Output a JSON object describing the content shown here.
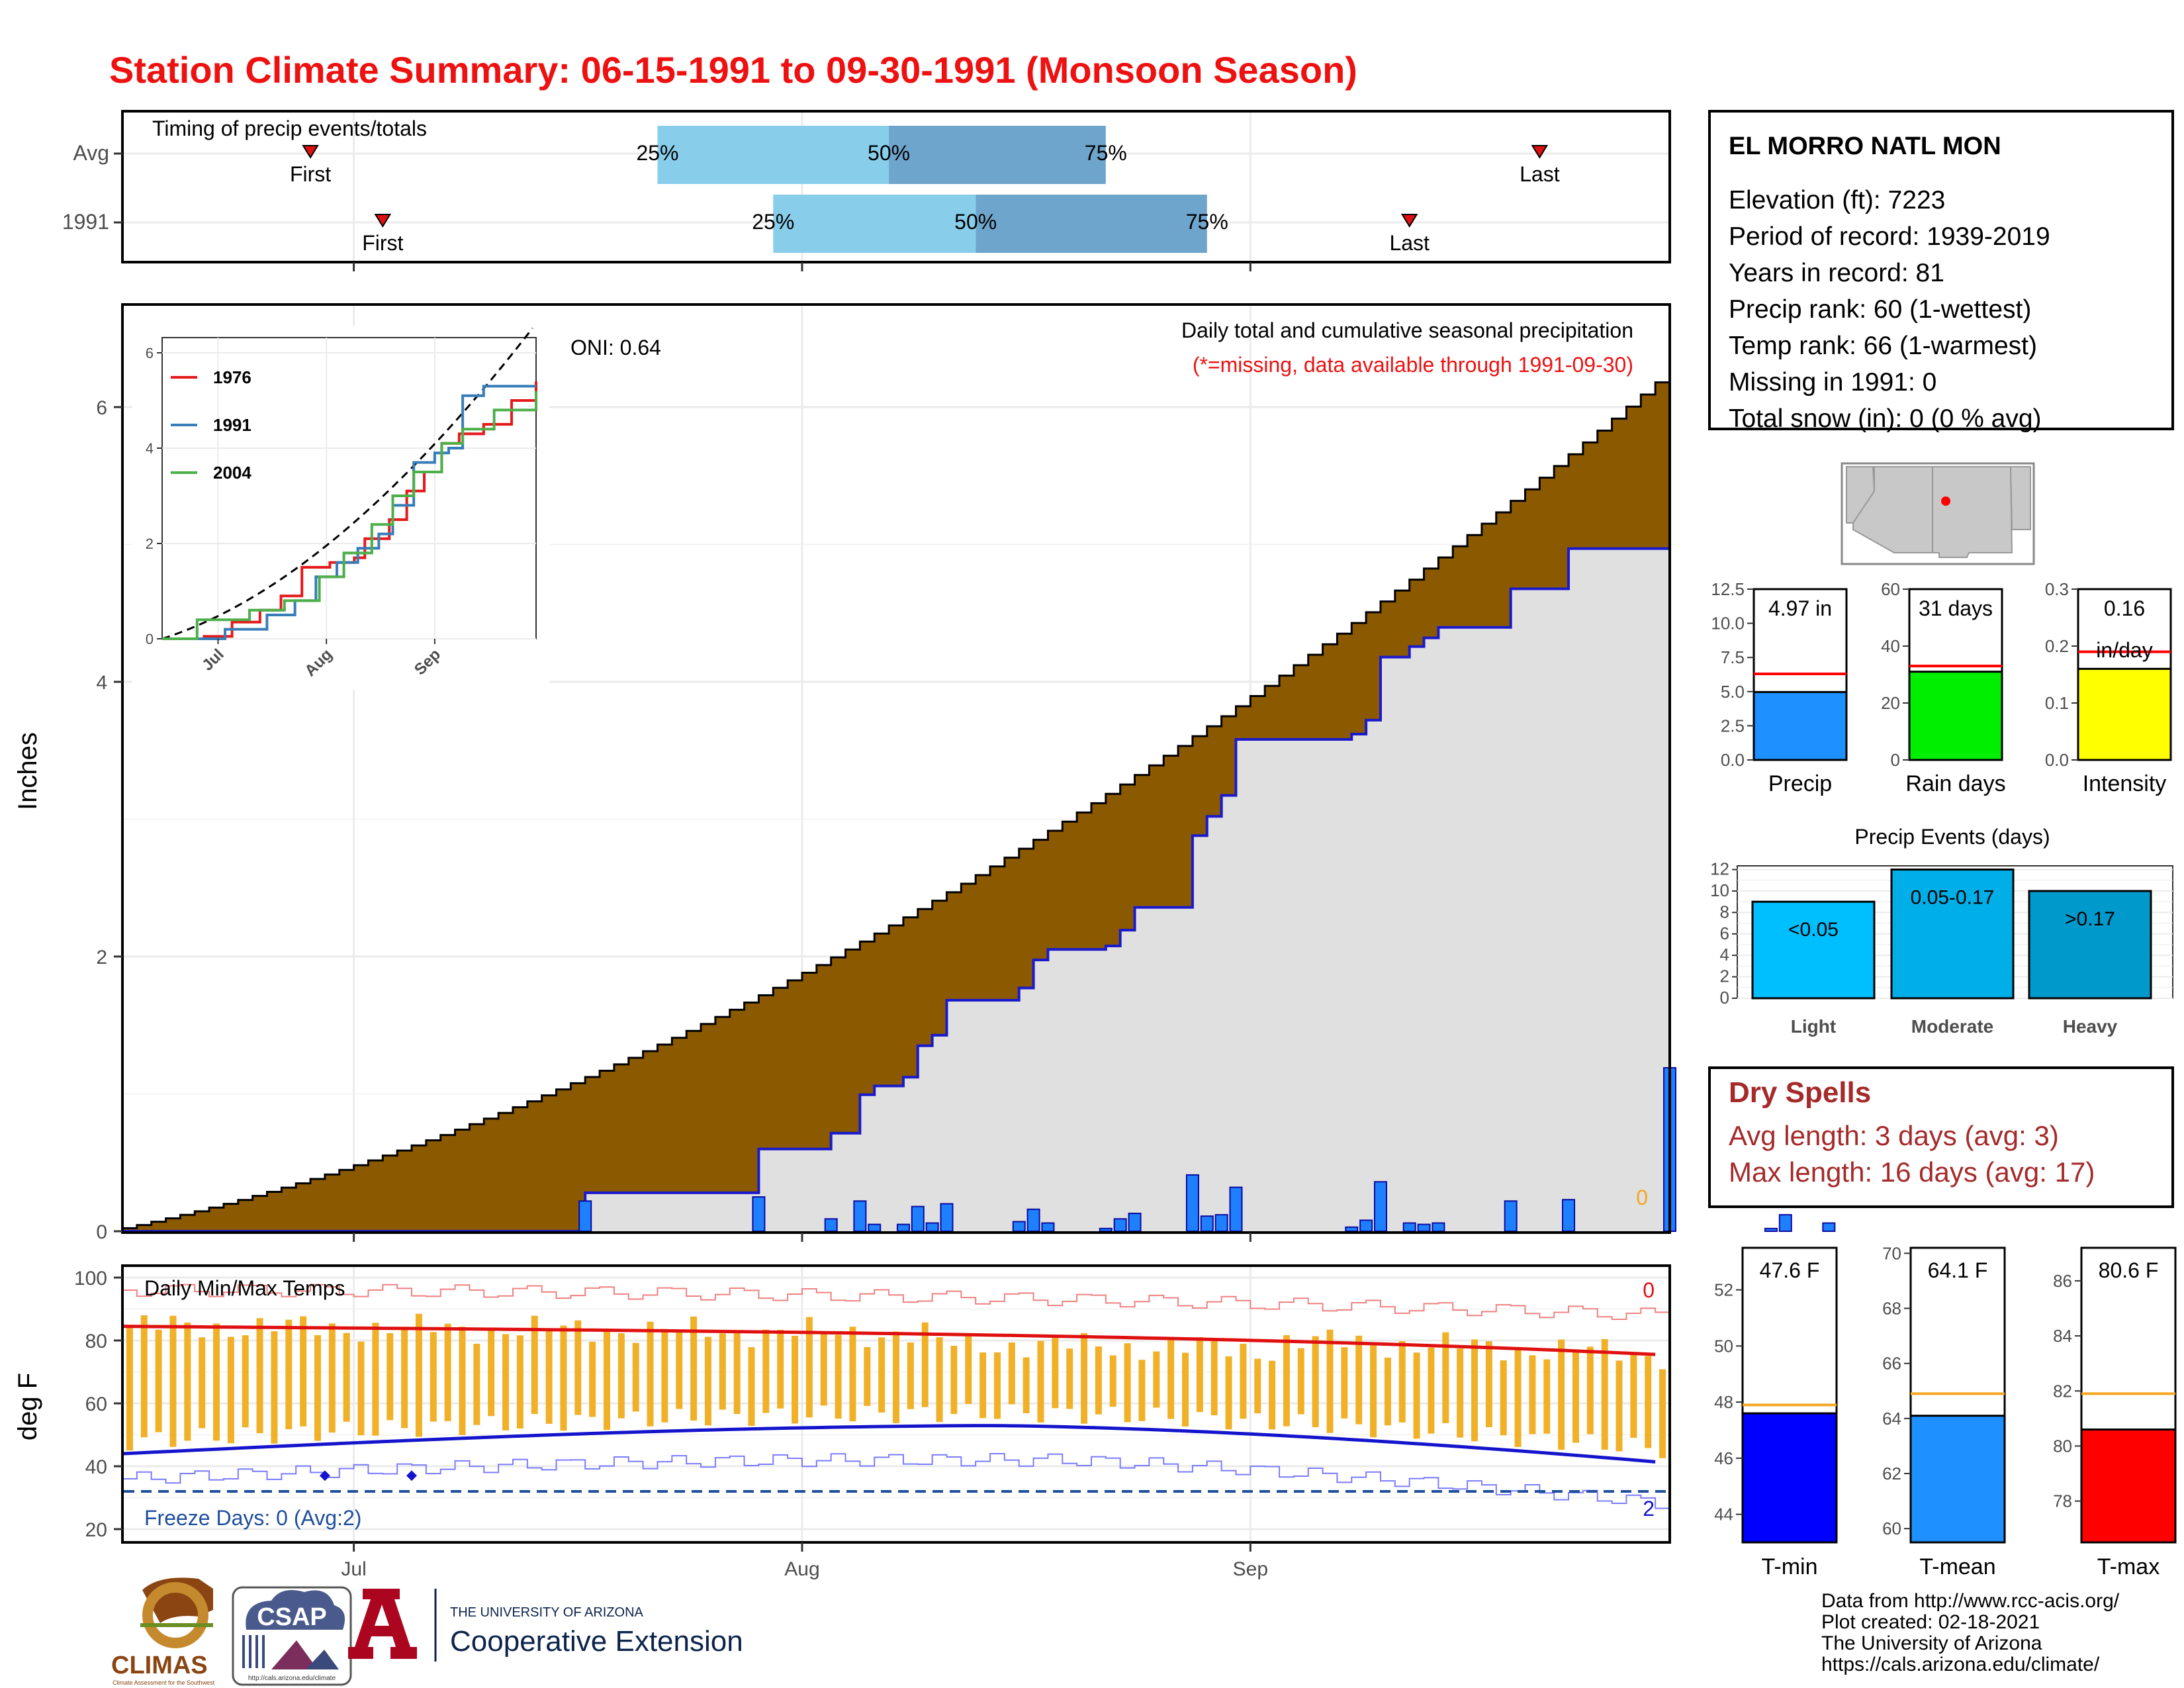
{
  "title": "Station Climate Summary: 06-15-1991 to 09-30-1991 (Monsoon Season)",
  "colors": {
    "title": "#ee1111",
    "cum_avg": "#8b5a00",
    "cum_obs": "#1a1acc",
    "bars": "#1e7fff",
    "area_bg": "#e0e0e0",
    "tmax_avg": "#e01010",
    "tmin_avg": "#1414cc",
    "temp_bar": "#f0b128",
    "q1": "#88ceeb",
    "q2": "#6ea5cc",
    "dry": "#a52a2a",
    "missing": "#ee1111"
  },
  "timing": {
    "title": "Timing of precip events/totals",
    "rows": [
      {
        "label": "Avg",
        "first_label": "First",
        "last_label": "Last",
        "first": "06-28",
        "last": "09-21",
        "q25": "07-22",
        "q50": "08-07",
        "q75": "08-22",
        "p25_label": "25%",
        "p50_label": "50%",
        "p75_label": "75%"
      },
      {
        "label": "1991",
        "first_label": "First",
        "last_label": "Last",
        "first": "07-03",
        "last": "09-12",
        "q25": "07-30",
        "q50": "08-13",
        "q75": "08-29",
        "p25_label": "25%",
        "p50_label": "50%",
        "p75_label": "75%"
      }
    ]
  },
  "main": {
    "ylabel": "Inches",
    "oni": "ONI: 0.64",
    "subtitle": "Daily total and cumulative seasonal precipitation",
    "missing_note": "(*=missing, data available through 1991-09-30)",
    "missing_count": "0",
    "x_ticks": [
      "Jul",
      "Aug",
      "Sep"
    ],
    "y_ticks": [
      "0",
      "2",
      "4",
      "6"
    ]
  },
  "inset": {
    "legend": [
      "1976",
      "1991",
      "2004"
    ],
    "legend_colors": [
      "#e41a1c",
      "#377eb8",
      "#4daf4a"
    ],
    "x_ticks": [
      "Jul",
      "Aug",
      "Sep"
    ],
    "y_ticks": [
      "0",
      "2",
      "4",
      "6"
    ]
  },
  "temp": {
    "ylabel": "deg F",
    "title": "Daily Min/Max Temps",
    "freeze_label": "Freeze Days: 0 (Avg:2)",
    "count_top": "0",
    "count_bottom": "2",
    "y_ticks": [
      "20",
      "40",
      "60",
      "80",
      "100"
    ],
    "x_ticks": [
      "Jul",
      "Aug",
      "Sep"
    ]
  },
  "station": {
    "name": "EL MORRO NATL MON",
    "lines": [
      "Elevation (ft): 7223",
      "Period of record: 1939-2019",
      "Years in record: 81",
      "Precip rank: 60 (1-wettest)",
      "Temp rank: 66 (1-warmest)",
      "Missing in 1991: 0",
      "Total snow (in): 0 (0 % avg)"
    ]
  },
  "mini_bars": [
    {
      "label": "Precip",
      "value_label": "4.97 in",
      "value": 4.97,
      "avg": 6.3,
      "max": 12.5,
      "ticks": [
        "0.0",
        "2.5",
        "5.0",
        "7.5",
        "10.0",
        "12.5"
      ],
      "color": "#1e90ff"
    },
    {
      "label": "Rain days",
      "value_label": "31 days",
      "value": 31,
      "avg": 33,
      "max": 60,
      "ticks": [
        "0",
        "20",
        "40",
        "60"
      ],
      "color": "#00ee00"
    },
    {
      "label": "Intensity",
      "value_label": "0.16",
      "value_label2": "in/day",
      "value": 0.16,
      "avg": 0.19,
      "max": 0.3,
      "ticks": [
        "0.0",
        "0.1",
        "0.2",
        "0.3"
      ],
      "color": "#ffff00"
    }
  ],
  "events": {
    "title": "Precip Events (days)",
    "categories": [
      "Light",
      "Moderate",
      "Heavy"
    ],
    "values": [
      9,
      12,
      10
    ],
    "value_labels": [
      "<0.05",
      "0.05-0.17",
      ">0.17"
    ],
    "colors": [
      "#00bfff",
      "#00afe8",
      "#0099cc"
    ],
    "y_ticks": [
      "0",
      "2",
      "4",
      "6",
      "8",
      "10",
      "12"
    ]
  },
  "dry": {
    "title": "Dry Spells",
    "avg_line": "Avg length: 3 days (avg: 3)",
    "max_line": "Max length: 16 days (avg: 17)"
  },
  "temp_bars": [
    {
      "label": "T-min",
      "value_label": "47.6 F",
      "value": 47.6,
      "avg": 47.9,
      "min": 43,
      "max": 53.5,
      "ticks": [
        "44",
        "46",
        "48",
        "50",
        "52"
      ],
      "tick_values": [
        44,
        46,
        48,
        50,
        52
      ],
      "color": "#0000ff"
    },
    {
      "label": "T-mean",
      "value_label": "64.1 F",
      "value": 64.1,
      "avg": 64.9,
      "min": 59.5,
      "max": 70.2,
      "ticks": [
        "60",
        "62",
        "64",
        "66",
        "68",
        "70"
      ],
      "tick_values": [
        60,
        62,
        64,
        66,
        68,
        70
      ],
      "color": "#1e90ff"
    },
    {
      "label": "T-max",
      "value_label": "80.6 F",
      "value": 80.6,
      "avg": 81.9,
      "min": 76.5,
      "max": 87.2,
      "ticks": [
        "78",
        "80",
        "82",
        "84",
        "86"
      ],
      "tick_values": [
        78,
        80,
        82,
        84,
        86
      ],
      "color": "#ff0000"
    }
  ],
  "footer": {
    "lines": [
      "Data from http://www.rcc-acis.org/",
      "Plot created: 02-18-2021",
      "The University of Arizona",
      "https://cals.arizona.edu/climate/"
    ],
    "climas": "CLIMAS",
    "climas_sub": "Climate Assessment for the Southwest",
    "csap": "CSAP",
    "csap_url": "http://cals.arizona.edu/climate",
    "ua_small": "THE UNIVERSITY OF ARIZONA",
    "ua_big": "Cooperative Extension",
    "ua_letter": "A"
  },
  "chart_data": {
    "type": "area",
    "title": "Daily total and cumulative seasonal precipitation",
    "ylabel": "Inches",
    "x_range": [
      "06-15",
      "09-30"
    ],
    "ylim": [
      0,
      6.8
    ],
    "daily_precip": [
      {
        "x": "07-17",
        "y": 0.22
      },
      {
        "x": "07-29",
        "y": 0.25
      },
      {
        "x": "08-03",
        "y": 0.09
      },
      {
        "x": "08-05",
        "y": 0.22
      },
      {
        "x": "08-06",
        "y": 0.05
      },
      {
        "x": "08-08",
        "y": 0.05
      },
      {
        "x": "08-09",
        "y": 0.18
      },
      {
        "x": "08-10",
        "y": 0.06
      },
      {
        "x": "08-11",
        "y": 0.2
      },
      {
        "x": "08-16",
        "y": 0.07
      },
      {
        "x": "08-17",
        "y": 0.16
      },
      {
        "x": "08-18",
        "y": 0.06
      },
      {
        "x": "08-22",
        "y": 0.02
      },
      {
        "x": "08-23",
        "y": 0.09
      },
      {
        "x": "08-24",
        "y": 0.13
      },
      {
        "x": "08-28",
        "y": 0.41
      },
      {
        "x": "08-29",
        "y": 0.11
      },
      {
        "x": "08-30",
        "y": 0.12
      },
      {
        "x": "08-31",
        "y": 0.32
      },
      {
        "x": "09-08",
        "y": 0.03
      },
      {
        "x": "09-09",
        "y": 0.08
      },
      {
        "x": "09-10",
        "y": 0.36
      },
      {
        "x": "09-12",
        "y": 0.06
      },
      {
        "x": "09-13",
        "y": 0.05
      },
      {
        "x": "09-14",
        "y": 0.06
      },
      {
        "x": "09-19",
        "y": 0.22
      },
      {
        "x": "09-23",
        "y": 0.23
      },
      {
        "x": "09-30",
        "y": 1.19
      },
      {
        "x": "10-07",
        "y": 0.02
      },
      {
        "x": "10-08",
        "y": 0.12
      },
      {
        "x": "10-11",
        "y": 0.06
      }
    ],
    "note": "daily_precip dates follow the plotted axis positions",
    "cumulative_avg_end": 6.18,
    "cumulative_obs_end": 4.97
  }
}
